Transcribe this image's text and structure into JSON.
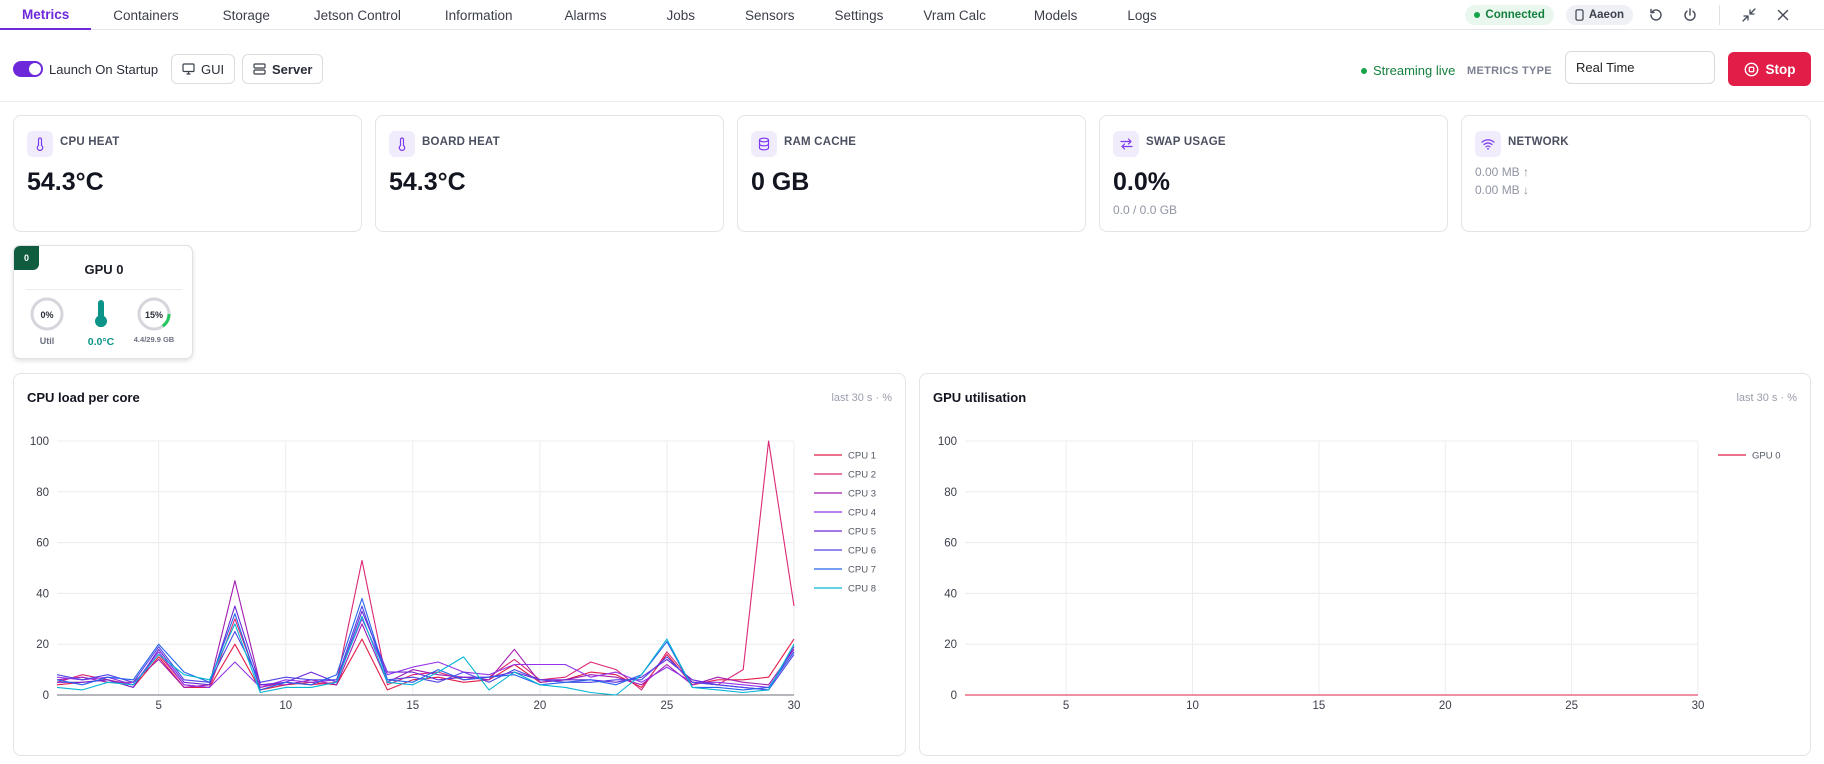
{
  "nav": {
    "tabs": [
      {
        "label": "Metrics",
        "active": true
      },
      {
        "label": "Containers"
      },
      {
        "label": "Storage"
      },
      {
        "label": "Jetson Control"
      },
      {
        "label": "Information"
      },
      {
        "label": "Alarms"
      },
      {
        "label": "Jobs"
      },
      {
        "label": "Sensors"
      },
      {
        "label": "Settings"
      },
      {
        "label": "Vram Calc"
      },
      {
        "label": "Models"
      },
      {
        "label": "Logs"
      }
    ],
    "status": "Connected",
    "device": "Aaeon",
    "icons": [
      "refresh-icon",
      "power-icon",
      "minimize-icon",
      "close-icon"
    ]
  },
  "toolbar": {
    "launch_label": "Launch On Startup",
    "launch_on": true,
    "gui_label": "GUI",
    "server_label": "Server",
    "streaming": "Streaming live",
    "metrics_type_label": "METRICS TYPE",
    "metrics_type_value": "Real Time",
    "stop_label": "Stop"
  },
  "colors": {
    "accent": "#6d28d9",
    "success": "#15803d",
    "danger": "#e11d48",
    "gpu_badge": "#0f5c3e"
  },
  "cards": {
    "cpu_heat": {
      "title": "CPU HEAT",
      "value": "54.3°C",
      "icon": "thermometer-icon"
    },
    "board_heat": {
      "title": "BOARD HEAT",
      "value": "54.3°C",
      "icon": "thermometer-icon"
    },
    "ram_cache": {
      "title": "RAM CACHE",
      "value": "0 GB",
      "icon": "database-icon"
    },
    "swap": {
      "title": "SWAP USAGE",
      "value": "0.0%",
      "sub": "0.0 / 0.0 GB",
      "icon": "swap-arrows-icon"
    },
    "network": {
      "title": "NETWORK",
      "up": "0.00 MB ↑",
      "down": "0.00 MB ↓",
      "icon": "wifi-icon"
    }
  },
  "gpu": {
    "badge": "0",
    "title": "GPU 0",
    "util_label": "0%",
    "util_value": 0,
    "util_caption": "Util",
    "temp": "0.0°C",
    "mem_label": "15%",
    "mem_value": 15,
    "mem_caption": "4.4/29.9 GB"
  },
  "charts": {
    "cpu": {
      "title": "CPU load per core",
      "meta": "last 30 s · %"
    },
    "gpu": {
      "title": "GPU utilisation",
      "meta": "last 30 s · %"
    }
  },
  "chart_data": [
    {
      "type": "line",
      "title": "CPU load per core",
      "x": [
        1,
        2,
        3,
        4,
        5,
        6,
        7,
        8,
        9,
        10,
        11,
        12,
        13,
        14,
        15,
        16,
        17,
        18,
        19,
        20,
        21,
        22,
        23,
        24,
        25,
        26,
        27,
        28,
        29,
        30
      ],
      "ylim": [
        0,
        100
      ],
      "xticks": [
        5,
        10,
        15,
        20,
        25,
        30
      ],
      "yticks": [
        0,
        20,
        40,
        60,
        80,
        100
      ],
      "grid": true,
      "legend": "top-right",
      "series": [
        {
          "name": "CPU 1",
          "color": "#e11d48",
          "values": [
            4,
            5,
            6,
            3,
            15,
            3,
            3,
            20,
            2,
            4,
            5,
            4,
            22,
            2,
            6,
            7,
            5,
            6,
            12,
            5,
            6,
            9,
            8,
            3,
            16,
            4,
            6,
            6,
            7,
            22
          ]
        },
        {
          "name": "CPU 2",
          "color": "#db2777",
          "values": [
            5,
            8,
            6,
            4,
            16,
            4,
            3,
            30,
            3,
            5,
            4,
            5,
            53,
            4,
            8,
            9,
            6,
            7,
            14,
            6,
            7,
            13,
            10,
            2,
            17,
            5,
            4,
            10,
            100,
            35
          ]
        },
        {
          "name": "CPU 3",
          "color": "#a21caf",
          "values": [
            6,
            7,
            5,
            5,
            14,
            3,
            4,
            45,
            4,
            4,
            6,
            4,
            28,
            5,
            10,
            8,
            7,
            6,
            18,
            5,
            6,
            8,
            7,
            4,
            12,
            4,
            7,
            5,
            4,
            18
          ]
        },
        {
          "name": "CPU 4",
          "color": "#9333ea",
          "values": [
            7,
            6,
            7,
            4,
            17,
            4,
            3,
            13,
            3,
            6,
            5,
            6,
            30,
            8,
            11,
            13,
            9,
            8,
            12,
            12,
            12,
            7,
            9,
            5,
            11,
            5,
            5,
            4,
            3,
            17
          ]
        },
        {
          "name": "CPU 5",
          "color": "#6d28d9",
          "values": [
            5,
            5,
            6,
            3,
            18,
            5,
            4,
            35,
            4,
            5,
            9,
            5,
            33,
            9,
            9,
            6,
            7,
            7,
            9,
            6,
            6,
            6,
            5,
            7,
            14,
            6,
            4,
            3,
            2,
            19
          ]
        },
        {
          "name": "CPU 6",
          "color": "#4f46e5",
          "values": [
            8,
            6,
            8,
            5,
            19,
            6,
            5,
            25,
            5,
            7,
            6,
            6,
            35,
            6,
            7,
            5,
            9,
            5,
            10,
            6,
            5,
            5,
            6,
            6,
            15,
            5,
            4,
            3,
            2,
            16
          ]
        },
        {
          "name": "CPU 7",
          "color": "#2563eb",
          "values": [
            6,
            4,
            7,
            6,
            20,
            9,
            5,
            32,
            2,
            5,
            4,
            8,
            38,
            6,
            5,
            10,
            6,
            7,
            8,
            4,
            5,
            6,
            4,
            8,
            21,
            3,
            3,
            2,
            3,
            17
          ]
        },
        {
          "name": "CPU 8",
          "color": "#06b6d4",
          "values": [
            3,
            2,
            5,
            4,
            16,
            8,
            6,
            28,
            1,
            3,
            3,
            5,
            31,
            5,
            4,
            9,
            15,
            2,
            9,
            4,
            3,
            1,
            0,
            8,
            22,
            3,
            2,
            1,
            2,
            20
          ]
        }
      ]
    },
    {
      "type": "line",
      "title": "GPU utilisation",
      "x": [
        1,
        2,
        3,
        4,
        5,
        6,
        7,
        8,
        9,
        10,
        11,
        12,
        13,
        14,
        15,
        16,
        17,
        18,
        19,
        20,
        21,
        22,
        23,
        24,
        25,
        26,
        27,
        28,
        29,
        30
      ],
      "ylim": [
        0,
        100
      ],
      "xticks": [
        5,
        10,
        15,
        20,
        25,
        30
      ],
      "yticks": [
        0,
        20,
        40,
        60,
        80,
        100
      ],
      "grid": true,
      "legend": "top-right",
      "series": [
        {
          "name": "GPU 0",
          "color": "#e11d48",
          "values": [
            0,
            0,
            0,
            0,
            0,
            0,
            0,
            0,
            0,
            0,
            0,
            0,
            0,
            0,
            0,
            0,
            0,
            0,
            0,
            0,
            0,
            0,
            0,
            0,
            0,
            0,
            0,
            0,
            0,
            0
          ]
        }
      ]
    }
  ]
}
